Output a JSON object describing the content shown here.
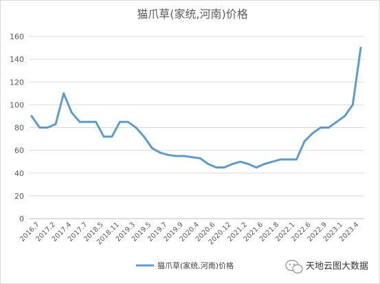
{
  "chart_data": {
    "type": "line",
    "title": "猫爪草(家统,河南)价格",
    "xlabel": "",
    "ylabel": "",
    "ylim": [
      0,
      160
    ],
    "yticks": [
      0,
      20,
      40,
      60,
      80,
      100,
      120,
      140,
      160
    ],
    "grid": true,
    "legend_position": "bottom",
    "x_tick_labels": [
      "2016.7",
      "2017.2",
      "2017.4",
      "2017.7",
      "2018.5",
      "2018.11",
      "2019.3",
      "2019.5",
      "2019.7",
      "2019.9",
      "2020.4",
      "2020.6",
      "2020.12",
      "2021.2",
      "2021.6",
      "2021.8",
      "2022.1",
      "2022.6",
      "2022.9",
      "2023.1",
      "2023.4"
    ],
    "series": [
      {
        "name": "猫爪草(家统,河南)价格",
        "color": "#5b9bd5",
        "values": [
          90,
          80,
          80,
          83,
          110,
          93,
          85,
          85,
          85,
          72,
          72,
          85,
          85,
          80,
          72,
          62,
          58,
          56,
          55,
          55,
          54,
          53,
          48,
          45,
          45,
          48,
          50,
          48,
          45,
          48,
          50,
          52,
          52,
          52,
          68,
          75,
          80,
          80,
          85,
          90,
          100,
          150
        ]
      }
    ]
  },
  "watermark": {
    "text": "天地云图大数据",
    "icon": "wechat-icon"
  }
}
